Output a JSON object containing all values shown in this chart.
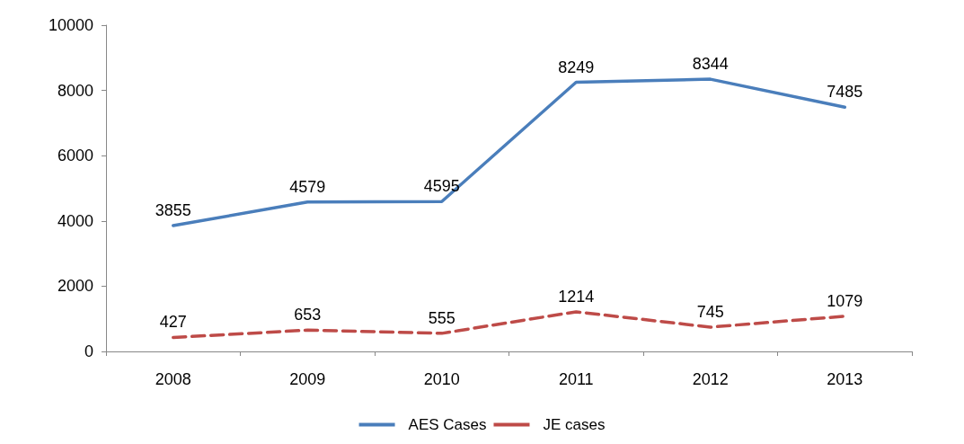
{
  "chart_data": {
    "type": "line",
    "categories": [
      "2008",
      "2009",
      "2010",
      "2011",
      "2012",
      "2013"
    ],
    "series": [
      {
        "name": "AES Cases",
        "color": "#4a7ebb",
        "line_style": "solid",
        "values": [
          3855,
          4579,
          4595,
          8249,
          8344,
          7485
        ]
      },
      {
        "name": "JE cases",
        "color": "#be4b48",
        "line_style": "dashed",
        "values": [
          427,
          653,
          555,
          1214,
          745,
          1079
        ]
      }
    ],
    "ylim": [
      0,
      10000
    ],
    "yticks": [
      0,
      2000,
      4000,
      6000,
      8000,
      10000
    ],
    "grid": false,
    "legend": "bottom",
    "marker": "none",
    "data_labels": true
  }
}
